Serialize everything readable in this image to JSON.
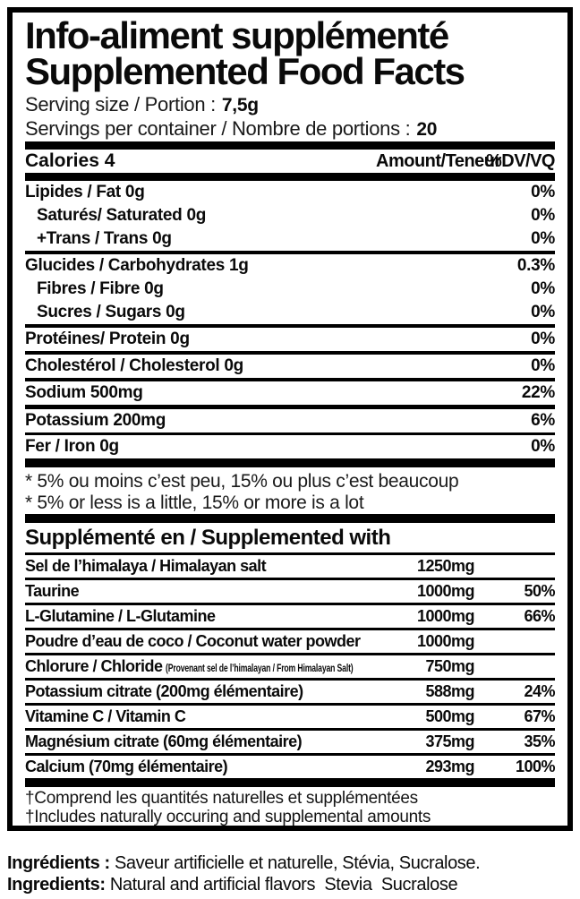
{
  "colors": {
    "ink": "#000000",
    "background": "#ffffff"
  },
  "box": {
    "title_fr": "Info-aliment supplémenté",
    "title_en": "Supplemented Food Facts",
    "serving": {
      "size_label": "Serving size / Portion :",
      "size_value": "7,5g",
      "count_label": "Servings per container / Nombre de portions :",
      "count_value": "20"
    },
    "calories_header": {
      "calories": "Calories 4",
      "amount": "Amount/Teneur",
      "dv": "%DV/VQ"
    },
    "nutrients": [
      {
        "label": "Lipides / Fat 0g",
        "dv": "0%"
      },
      {
        "label": "Saturés/ Saturated 0g",
        "dv": "0%"
      },
      {
        "label": "+Trans / Trans 0g",
        "dv": "0%"
      },
      {
        "label": "Glucides / Carbohydrates 1g",
        "dv": "0.3%"
      },
      {
        "label": "Fibres / Fibre 0g",
        "dv": "0%"
      },
      {
        "label": "Sucres / Sugars 0g",
        "dv": "0%"
      },
      {
        "label": "Protéines/ Protein 0g",
        "dv": "0%"
      },
      {
        "label": "Cholestérol / Cholesterol 0g",
        "dv": "0%"
      },
      {
        "label": "Sodium 500mg",
        "dv": "22%"
      },
      {
        "label": "Potassium 200mg",
        "dv": "6%"
      },
      {
        "label": "Fer / Iron 0g",
        "dv": "0%"
      }
    ],
    "footnotes": {
      "fr": "* 5% ou moins c’est peu, 15% ou plus c’est beaucoup",
      "en": "* 5% or less is a little, 15% or more is a lot"
    },
    "supplements": {
      "heading": "Supplémenté en / Supplemented with",
      "rows": [
        {
          "label": "Sel de l’himalaya / Himalayan salt",
          "note": "",
          "amount": "1250mg",
          "dv": ""
        },
        {
          "label": "Taurine",
          "note": "",
          "amount": "1000mg",
          "dv": "50%"
        },
        {
          "label": "L-Glutamine / L-Glutamine",
          "note": "",
          "amount": "1000mg",
          "dv": "66%"
        },
        {
          "label": "Poudre d’eau de coco / Coconut water powder",
          "note": "",
          "amount": "1000mg",
          "dv": ""
        },
        {
          "label": "Chlorure / Chloride",
          "note": "(Provenant sel de l’himalayan / From Himalayan Salt)",
          "amount": "750mg",
          "dv": ""
        },
        {
          "label": "Potassium citrate (200mg élémentaire)",
          "note": "",
          "amount": "588mg",
          "dv": "24%"
        },
        {
          "label": "Vitamine C / Vitamin C",
          "note": "",
          "amount": "500mg",
          "dv": "67%"
        },
        {
          "label": "Magnésium citrate (60mg élémentaire)",
          "note": "",
          "amount": "375mg",
          "dv": "35%"
        },
        {
          "label": "Calcium (70mg élémentaire)",
          "note": "",
          "amount": "293mg",
          "dv": "100%"
        }
      ]
    },
    "dagger_notes": {
      "fr": "†Comprend les quantités naturelles et supplémentées",
      "en": "†Includes naturally occuring and supplemental amounts"
    }
  },
  "ingredients": {
    "fr_label": "Ingrédients :",
    "fr_value": "Saveur artificielle et naturelle, Stévia, Sucralose.",
    "en_label": "Ingredients:",
    "en_value": "Natural and artificial flavors  Stevia  Sucralose"
  }
}
